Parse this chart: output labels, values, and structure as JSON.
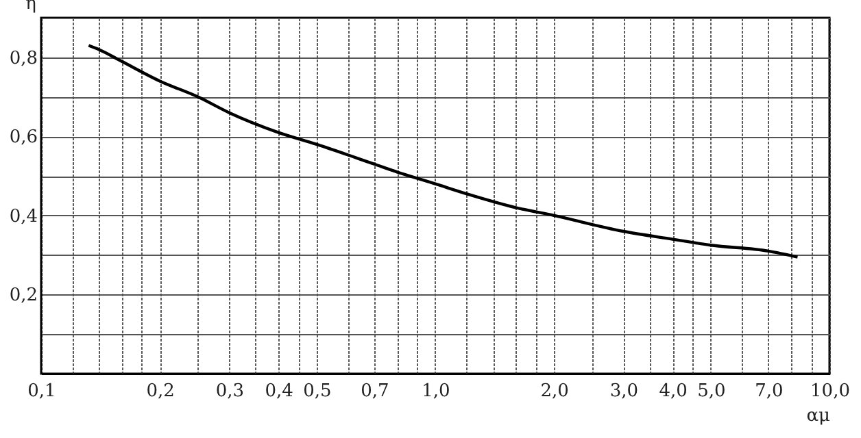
{
  "chart_data": {
    "type": "line",
    "xlabel": "αμ",
    "ylabel": "η",
    "log": "x",
    "grid": true,
    "line_style": "solid",
    "marker": "none",
    "x": [
      0.132,
      0.14,
      0.16,
      0.2,
      0.25,
      0.3,
      0.4,
      0.5,
      0.7,
      0.8,
      1.0,
      1.2,
      1.6,
      2.0,
      3.0,
      4.0,
      5.0,
      7.0,
      8.3
    ],
    "series": [
      {
        "color": "#000000",
        "values": [
          0.83,
          0.82,
          0.79,
          0.74,
          0.7,
          0.66,
          0.61,
          0.58,
          0.53,
          0.51,
          0.48,
          0.455,
          0.42,
          0.4,
          0.36,
          0.34,
          0.325,
          0.31,
          0.295
        ]
      }
    ],
    "xlim": [
      0.1,
      10
    ],
    "xticks": [
      {
        "value": 0.1,
        "label": "0,1"
      },
      {
        "value": 0.12,
        "label": null
      },
      {
        "value": 0.14,
        "label": null
      },
      {
        "value": 0.16,
        "label": null
      },
      {
        "value": 0.18,
        "label": null
      },
      {
        "value": 0.2,
        "label": "0,2"
      },
      {
        "value": 0.25,
        "label": null
      },
      {
        "value": 0.3,
        "label": "0,3"
      },
      {
        "value": 0.35,
        "label": null
      },
      {
        "value": 0.4,
        "label": "0,4"
      },
      {
        "value": 0.45,
        "label": null
      },
      {
        "value": 0.5,
        "label": "0,5"
      },
      {
        "value": 0.6,
        "label": null
      },
      {
        "value": 0.7,
        "label": "0,7"
      },
      {
        "value": 0.8,
        "label": null
      },
      {
        "value": 0.9,
        "label": null
      },
      {
        "value": 1,
        "label": "1,0"
      },
      {
        "value": 1.2,
        "label": null
      },
      {
        "value": 1.4,
        "label": null
      },
      {
        "value": 1.6,
        "label": null
      },
      {
        "value": 1.8,
        "label": null
      },
      {
        "value": 2,
        "label": "2,0"
      },
      {
        "value": 2.5,
        "label": null
      },
      {
        "value": 3,
        "label": "3,0"
      },
      {
        "value": 3.5,
        "label": null
      },
      {
        "value": 4,
        "label": "4,0"
      },
      {
        "value": 4.5,
        "label": null
      },
      {
        "value": 5,
        "label": "5,0"
      },
      {
        "value": 6,
        "label": null
      },
      {
        "value": 7,
        "label": "7,0"
      },
      {
        "value": 8,
        "label": null
      },
      {
        "value": 9,
        "label": null
      },
      {
        "value": 10,
        "label": "10,0"
      }
    ],
    "ylim": [
      0,
      0.9
    ],
    "yticks": [
      {
        "value": 0.1,
        "label": null
      },
      {
        "value": 0.2,
        "label": "0,2"
      },
      {
        "value": 0.3,
        "label": null
      },
      {
        "value": 0.4,
        "label": "0,4"
      },
      {
        "value": 0.5,
        "label": null
      },
      {
        "value": 0.6,
        "label": "0,6"
      },
      {
        "value": 0.7,
        "label": null
      },
      {
        "value": 0.8,
        "label": "0,8"
      },
      {
        "value": 0.9,
        "label": null
      }
    ]
  }
}
